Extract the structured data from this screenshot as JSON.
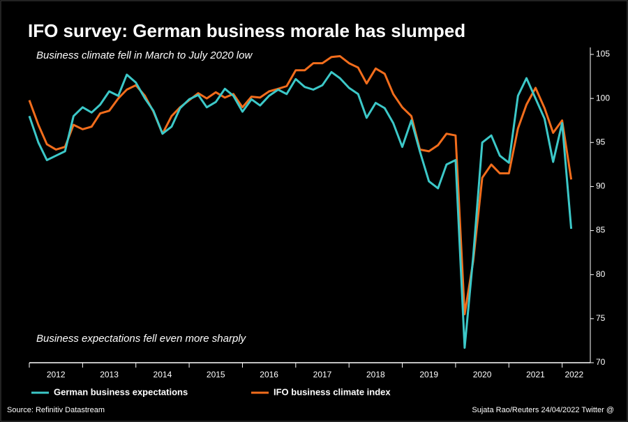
{
  "chart_data": {
    "type": "line",
    "title": "IFO survey: German business morale has slumped",
    "subtitle": "Business climate fell in March to July 2020 low",
    "annotation": "Business expectations fell even more sharply",
    "source": "Source: Refinitiv Datastream",
    "credit": "Sujata Rao/Reuters 24/04/2022 Twitter @",
    "x": [
      2012,
      2012.17,
      2012.33,
      2012.5,
      2012.67,
      2012.83,
      2013,
      2013.17,
      2013.33,
      2013.5,
      2013.67,
      2013.83,
      2014,
      2014.17,
      2014.33,
      2014.5,
      2014.67,
      2014.83,
      2015,
      2015.17,
      2015.33,
      2015.5,
      2015.67,
      2015.83,
      2016,
      2016.17,
      2016.33,
      2016.5,
      2016.67,
      2016.83,
      2017,
      2017.17,
      2017.33,
      2017.5,
      2017.67,
      2017.83,
      2018,
      2018.17,
      2018.33,
      2018.5,
      2018.67,
      2018.83,
      2019,
      2019.17,
      2019.33,
      2019.5,
      2019.67,
      2019.83,
      2020,
      2020.17,
      2020.33,
      2020.5,
      2020.67,
      2020.83,
      2021,
      2021.17,
      2021.33,
      2021.5,
      2021.67,
      2021.83,
      2022,
      2022.17
    ],
    "series": [
      {
        "name": "German business expectations",
        "color": "#3cc8c8",
        "values": [
          98,
          95,
          93,
          93.5,
          94,
          98,
          99,
          98.4,
          99.3,
          100.8,
          100.3,
          102.7,
          101.8,
          100,
          98.6,
          96,
          96.8,
          98.9,
          99.9,
          100.4,
          99,
          99.6,
          101.1,
          100.3,
          98.5,
          99.9,
          99.2,
          100.3,
          101,
          100.5,
          102.2,
          101.3,
          101,
          101.5,
          103,
          102.3,
          101.2,
          100.5,
          97.8,
          99.5,
          98.9,
          97.2,
          94.5,
          97.5,
          94,
          90.6,
          89.8,
          92.5,
          93,
          71.7,
          82,
          95,
          95.8,
          93.5,
          92.7,
          100.3,
          102.3,
          100,
          97.7,
          92.8,
          97.2,
          85.2
        ]
      },
      {
        "name": "IFO business climate index",
        "color": "#f26d1c",
        "values": [
          99.8,
          97,
          94.8,
          94.2,
          94.5,
          97,
          96.5,
          96.8,
          98.3,
          98.6,
          100,
          101,
          101.5,
          100.3,
          98.5,
          96,
          98,
          99,
          99.8,
          100.6,
          100,
          100.7,
          100.1,
          100.5,
          99,
          100.2,
          100.1,
          100.8,
          101.1,
          101.4,
          103.2,
          103.2,
          104,
          104,
          104.7,
          104.8,
          104,
          103.5,
          101.7,
          103.4,
          102.8,
          100.5,
          99,
          98,
          94.2,
          94,
          94.7,
          96,
          95.8,
          75.5,
          81.5,
          91,
          92.5,
          91.5,
          91.5,
          96.6,
          99.3,
          101.2,
          98.9,
          96.1,
          97.5,
          90.8
        ]
      }
    ],
    "xlim": [
      2012,
      2022.45
    ],
    "xticks": [
      2012,
      2013,
      2014,
      2015,
      2016,
      2017,
      2018,
      2019,
      2020,
      2021,
      2022
    ],
    "ylim": [
      70,
      105
    ],
    "yticks": [
      70,
      75,
      80,
      85,
      90,
      95,
      100,
      105
    ],
    "grid": false
  }
}
